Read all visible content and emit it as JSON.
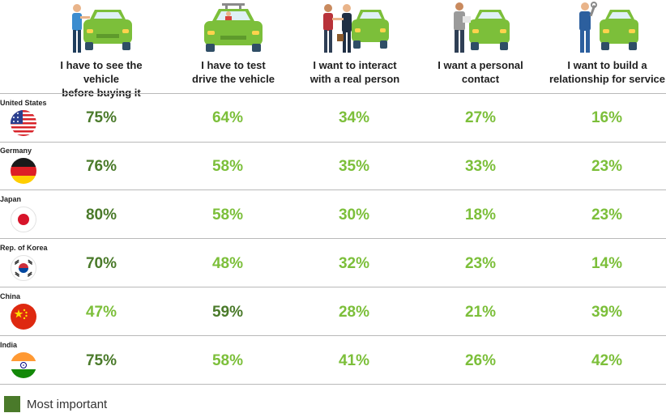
{
  "colors": {
    "most_important": "#4a7a2a",
    "other": "#7cbf3a"
  },
  "chart_data": {
    "type": "table",
    "columns": [
      "I have to see the vehicle before buying it",
      "I have to test drive the vehicle",
      "I want to interact with a real person",
      "I want a personal contact",
      "I want to build a relationship for service"
    ],
    "rows": [
      {
        "country": "United States",
        "values": [
          "75%",
          "64%",
          "34%",
          "27%",
          "16%"
        ],
        "most_important_index": 0
      },
      {
        "country": "Germany",
        "values": [
          "76%",
          "58%",
          "35%",
          "33%",
          "23%"
        ],
        "most_important_index": 0
      },
      {
        "country": "Japan",
        "values": [
          "80%",
          "58%",
          "30%",
          "18%",
          "23%"
        ],
        "most_important_index": 0
      },
      {
        "country": "Rep. of Korea",
        "values": [
          "70%",
          "48%",
          "32%",
          "23%",
          "14%"
        ],
        "most_important_index": 0
      },
      {
        "country": "China",
        "values": [
          "47%",
          "59%",
          "28%",
          "21%",
          "39%"
        ],
        "most_important_index": 1
      },
      {
        "country": "India",
        "values": [
          "75%",
          "58%",
          "41%",
          "26%",
          "42%"
        ],
        "most_important_index": 0
      }
    ]
  },
  "header": {
    "col0": [
      "I have to see the vehicle",
      "before buying it"
    ],
    "col1": [
      "I have to test",
      "drive the vehicle"
    ],
    "col2": [
      "I want to interact",
      "with a real person"
    ],
    "col3": [
      "I want a personal",
      "contact"
    ],
    "col4": [
      "I want to build a",
      "relationship for service"
    ]
  },
  "legend": {
    "label": "Most important"
  },
  "icons": [
    "person-with-car-icon",
    "car-driver-icon",
    "handshake-car-icon",
    "salesperson-car-icon",
    "mechanic-car-icon"
  ],
  "flags": [
    "us-flag-icon",
    "germany-flag-icon",
    "japan-flag-icon",
    "korea-flag-icon",
    "china-flag-icon",
    "india-flag-icon"
  ]
}
